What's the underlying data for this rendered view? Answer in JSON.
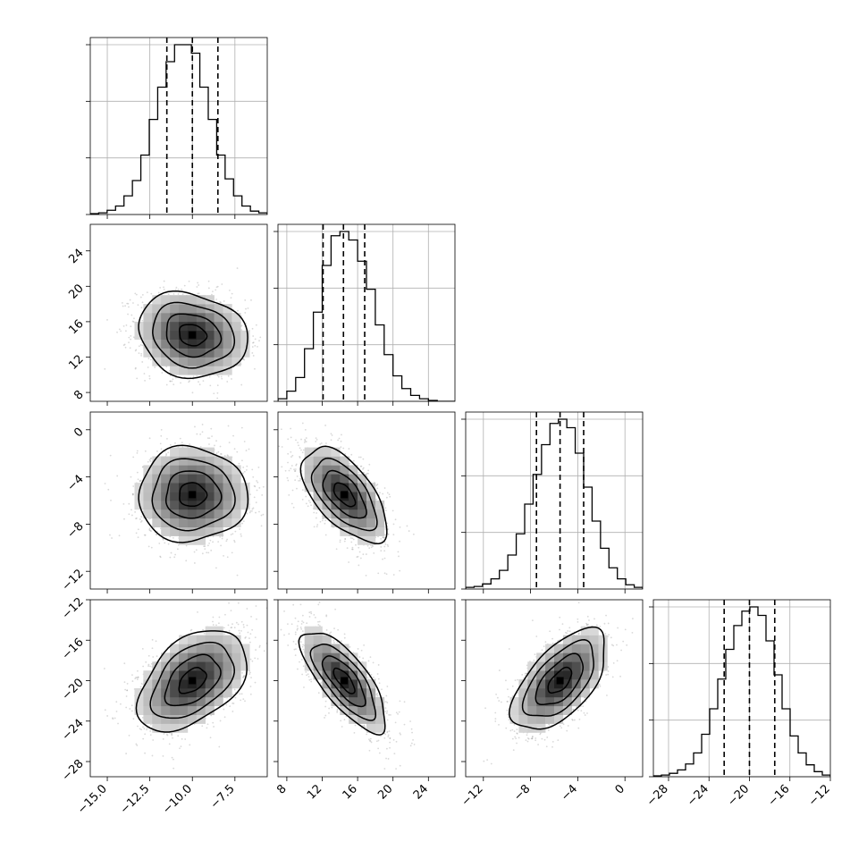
{
  "chart_data": {
    "type": "corner",
    "parameters": [
      {
        "mean": -10.0,
        "sd": 1.6,
        "q16": -11.5,
        "q50": -10.0,
        "q84": -8.5,
        "range": [
          -16,
          -5.6
        ],
        "ticks": [
          -15.0,
          -12.5,
          -10.0,
          -7.5
        ],
        "tick_labels": [
          "−15.0",
          "−12.5",
          "−10.0",
          "−7.5"
        ]
      },
      {
        "mean": 14.5,
        "sd": 2.4,
        "q16": 12.1,
        "q50": 14.4,
        "q84": 16.8,
        "range": [
          7.0,
          27.0
        ],
        "ticks": [
          8,
          12,
          16,
          20,
          24
        ],
        "tick_labels": [
          "8",
          "12",
          "16",
          "20",
          "24"
        ]
      },
      {
        "mean": -5.5,
        "sd": 2.0,
        "q16": -7.5,
        "q50": -5.5,
        "q84": -3.5,
        "range": [
          -13.5,
          1.5
        ],
        "ticks": [
          -12,
          -8,
          -4,
          0
        ],
        "tick_labels": [
          "−12",
          "−8",
          "−4",
          "0"
        ]
      },
      {
        "mean": -20.0,
        "sd": 2.5,
        "q16": -22.5,
        "q50": -20.0,
        "q84": -17.5,
        "range": [
          -29.5,
          -12.0
        ],
        "ticks": [
          -28,
          -24,
          -20,
          -16,
          -12
        ],
        "tick_labels": [
          "−28",
          "−24",
          "−20",
          "−16",
          "−12"
        ]
      }
    ],
    "correlations": [
      {
        "row": 1,
        "col": 0,
        "rho": -0.15
      },
      {
        "row": 2,
        "col": 0,
        "rho": 0.0
      },
      {
        "row": 2,
        "col": 1,
        "rho": -0.6
      },
      {
        "row": 3,
        "col": 0,
        "rho": 0.45
      },
      {
        "row": 3,
        "col": 1,
        "rho": -0.75
      },
      {
        "row": 3,
        "col": 2,
        "rho": 0.6
      }
    ],
    "histograms": [
      [
        1,
        2,
        5,
        10,
        22,
        40,
        70,
        112,
        150,
        180,
        200,
        200,
        190,
        150,
        112,
        70,
        42,
        22,
        10,
        4,
        2
      ],
      [
        3,
        12,
        28,
        62,
        105,
        160,
        195,
        200,
        190,
        165,
        132,
        90,
        55,
        30,
        15,
        7,
        3,
        1,
        0,
        0
      ],
      [
        2,
        3,
        6,
        12,
        22,
        40,
        65,
        100,
        135,
        170,
        195,
        200,
        190,
        160,
        120,
        80,
        48,
        25,
        12,
        5,
        2
      ],
      [
        1,
        2,
        4,
        8,
        15,
        28,
        50,
        80,
        115,
        150,
        178,
        195,
        200,
        190,
        160,
        120,
        80,
        48,
        28,
        14,
        6,
        2
      ]
    ],
    "grid": true,
    "colors": {
      "line": "#000000",
      "scatter": "#808080",
      "grid": "#b0b0b0"
    }
  }
}
